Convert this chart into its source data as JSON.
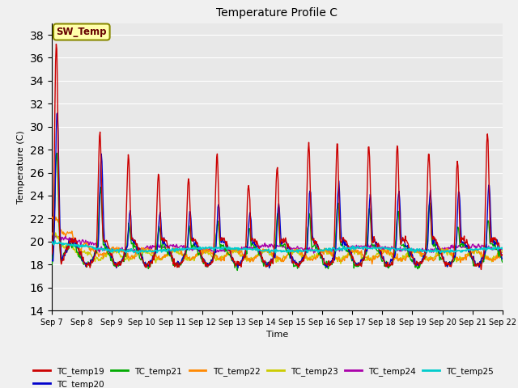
{
  "title": "Temperature Profile C",
  "xlabel": "Time",
  "ylabel": "Temperature (C)",
  "ylim": [
    14,
    39
  ],
  "yticks": [
    14,
    16,
    18,
    20,
    22,
    24,
    26,
    28,
    30,
    32,
    34,
    36,
    38
  ],
  "x_labels": [
    "Sep 7",
    "Sep 8",
    "Sep 9",
    "Sep 10",
    "Sep 11",
    "Sep 12",
    "Sep 13",
    "Sep 14",
    "Sep 15",
    "Sep 16",
    "Sep 17",
    "Sep 18",
    "Sep 19",
    "Sep 20",
    "Sep 21",
    "Sep 22"
  ],
  "annotation_text": "SW_Temp",
  "series_colors": {
    "TC_temp19": "#cc0000",
    "TC_temp20": "#0000cc",
    "TC_temp21": "#00aa00",
    "TC_temp22": "#ff8800",
    "TC_temp23": "#cccc00",
    "TC_temp24": "#aa00aa",
    "TC_temp25": "#00cccc"
  },
  "background_color": "#e8e8e8",
  "legend_order": [
    "TC_temp19",
    "TC_temp20",
    "TC_temp21",
    "TC_temp22",
    "TC_temp23",
    "TC_temp24",
    "TC_temp25"
  ]
}
